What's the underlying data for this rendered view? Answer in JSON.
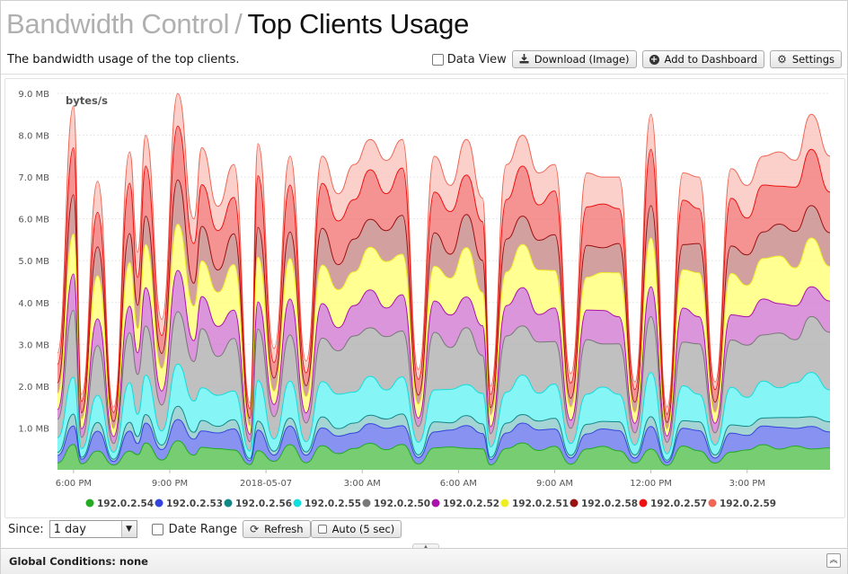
{
  "header": {
    "breadcrumb_parent": "Bandwidth Control",
    "separator": "/",
    "title": "Top Clients Usage",
    "description": "The bandwidth usage of the top clients."
  },
  "toolbar": {
    "data_view_label": "Data View",
    "download_label": "Download (Image)",
    "add_dashboard_label": "Add to Dashboard",
    "settings_label": "Settings"
  },
  "controls": {
    "since_label": "Since:",
    "since_value": "1 day",
    "date_range_label": "Date Range",
    "refresh_label": "Refresh",
    "auto_label": "Auto (5 sec)"
  },
  "footer": {
    "global_conditions": "Global Conditions: none"
  },
  "icons": {
    "download": "download-icon",
    "add": "plus-circle-icon",
    "settings": "gear-icon",
    "refresh": "refresh-icon",
    "collapse": "chevron-double-up-icon"
  },
  "chart_data": {
    "type": "area",
    "stacked": true,
    "ylabel": "bytes/s",
    "ylim": [
      0,
      9000000
    ],
    "yticks": [
      {
        "value": 1000000,
        "label": "1.0 MB"
      },
      {
        "value": 2000000,
        "label": "2.0 MB"
      },
      {
        "value": 3000000,
        "label": "3.0 MB"
      },
      {
        "value": 4000000,
        "label": "4.0 MB"
      },
      {
        "value": 5000000,
        "label": "5.0 MB"
      },
      {
        "value": 6000000,
        "label": "6.0 MB"
      },
      {
        "value": 7000000,
        "label": "7.0 MB"
      },
      {
        "value": 8000000,
        "label": "8.0 MB"
      },
      {
        "value": 9000000,
        "label": "9.0 MB"
      }
    ],
    "xlim": [
      "2018-05-06 17:30",
      "2018-05-07 17:35"
    ],
    "xticks": [
      {
        "value": "2018-05-06 18:00",
        "label": "6:00 PM"
      },
      {
        "value": "2018-05-06 21:00",
        "label": "9:00 PM"
      },
      {
        "value": "2018-05-07 00:00",
        "label": "2018-05-07"
      },
      {
        "value": "2018-05-07 03:00",
        "label": "3:00 AM"
      },
      {
        "value": "2018-05-07 06:00",
        "label": "6:00 AM"
      },
      {
        "value": "2018-05-07 09:00",
        "label": "9:00 AM"
      },
      {
        "value": "2018-05-07 12:00",
        "label": "12:00 PM"
      },
      {
        "value": "2018-05-07 15:00",
        "label": "3:00 PM"
      }
    ],
    "grid": true,
    "legend_position": "bottom",
    "stack_totals": [
      {
        "time": "2018-05-06 17:30",
        "value": 2800000
      },
      {
        "time": "2018-05-06 18:00",
        "value": 8700000
      },
      {
        "time": "2018-05-06 18:15",
        "value": 1800000
      },
      {
        "time": "2018-05-06 18:45",
        "value": 6900000
      },
      {
        "time": "2018-05-06 19:15",
        "value": 1500000
      },
      {
        "time": "2018-05-06 19:45",
        "value": 7600000
      },
      {
        "time": "2018-05-06 20:00",
        "value": 5200000
      },
      {
        "time": "2018-05-06 20:15",
        "value": 8000000
      },
      {
        "time": "2018-05-06 20:45",
        "value": 3600000
      },
      {
        "time": "2018-05-06 21:15",
        "value": 9000000
      },
      {
        "time": "2018-05-06 21:45",
        "value": 6000000
      },
      {
        "time": "2018-05-06 22:00",
        "value": 7700000
      },
      {
        "time": "2018-05-06 22:30",
        "value": 6300000
      },
      {
        "time": "2018-05-06 23:00",
        "value": 7300000
      },
      {
        "time": "2018-05-06 23:30",
        "value": 1600000
      },
      {
        "time": "2018-05-06 23:45",
        "value": 7800000
      },
      {
        "time": "2018-05-07 00:15",
        "value": 2900000
      },
      {
        "time": "2018-05-07 00:45",
        "value": 7500000
      },
      {
        "time": "2018-05-07 01:15",
        "value": 2600000
      },
      {
        "time": "2018-05-07 01:45",
        "value": 7500000
      },
      {
        "time": "2018-05-07 02:15",
        "value": 6600000
      },
      {
        "time": "2018-05-07 02:45",
        "value": 7300000
      },
      {
        "time": "2018-05-07 03:15",
        "value": 7900000
      },
      {
        "time": "2018-05-07 03:45",
        "value": 7400000
      },
      {
        "time": "2018-05-07 04:15",
        "value": 7900000
      },
      {
        "time": "2018-05-07 04:45",
        "value": 2400000
      },
      {
        "time": "2018-05-07 05:15",
        "value": 7500000
      },
      {
        "time": "2018-05-07 05:45",
        "value": 6800000
      },
      {
        "time": "2018-05-07 06:15",
        "value": 7900000
      },
      {
        "time": "2018-05-07 06:45",
        "value": 6500000
      },
      {
        "time": "2018-05-07 07:00",
        "value": 2000000
      },
      {
        "time": "2018-05-07 07:30",
        "value": 7300000
      },
      {
        "time": "2018-05-07 08:00",
        "value": 8000000
      },
      {
        "time": "2018-05-07 08:30",
        "value": 7100000
      },
      {
        "time": "2018-05-07 09:00",
        "value": 7300000
      },
      {
        "time": "2018-05-07 09:30",
        "value": 2300000
      },
      {
        "time": "2018-05-07 10:00",
        "value": 7100000
      },
      {
        "time": "2018-05-07 10:30",
        "value": 7000000
      },
      {
        "time": "2018-05-07 11:00",
        "value": 7000000
      },
      {
        "time": "2018-05-07 11:30",
        "value": 2100000
      },
      {
        "time": "2018-05-07 12:00",
        "value": 8500000
      },
      {
        "time": "2018-05-07 12:30",
        "value": 1500000
      },
      {
        "time": "2018-05-07 13:00",
        "value": 7100000
      },
      {
        "time": "2018-05-07 13:30",
        "value": 7000000
      },
      {
        "time": "2018-05-07 14:00",
        "value": 2100000
      },
      {
        "time": "2018-05-07 14:30",
        "value": 7200000
      },
      {
        "time": "2018-05-07 15:00",
        "value": 6800000
      },
      {
        "time": "2018-05-07 15:30",
        "value": 7500000
      },
      {
        "time": "2018-05-07 16:00",
        "value": 7600000
      },
      {
        "time": "2018-05-07 16:30",
        "value": 7400000
      },
      {
        "time": "2018-05-07 17:00",
        "value": 8500000
      },
      {
        "time": "2018-05-07 17:35",
        "value": 7500000
      }
    ],
    "series": [
      {
        "name": "192.0.2.54",
        "color": "#22aa22",
        "fill": "#55c24f",
        "share": 0.07
      },
      {
        "name": "192.0.2.53",
        "color": "#3344dd",
        "fill": "#6a78ee",
        "share": 0.06
      },
      {
        "name": "192.0.2.56",
        "color": "#118888",
        "fill": "#8fc9c9",
        "share": 0.03
      },
      {
        "name": "192.0.2.55",
        "color": "#11dddd",
        "fill": "#66f2f2",
        "share": 0.11
      },
      {
        "name": "192.0.2.50",
        "color": "#777777",
        "fill": "#b0b0b0",
        "share": 0.16
      },
      {
        "name": "192.0.2.52",
        "color": "#aa11aa",
        "fill": "#d27ad2",
        "share": 0.1
      },
      {
        "name": "192.0.2.51",
        "color": "#eeee22",
        "fill": "#ffff77",
        "share": 0.13
      },
      {
        "name": "192.0.2.58",
        "color": "#991111",
        "fill": "#c88888",
        "share": 0.1
      },
      {
        "name": "192.0.2.57",
        "color": "#ee1111",
        "fill": "#f37777",
        "share": 0.14
      },
      {
        "name": "192.0.2.59",
        "color": "#ee6655",
        "fill": "#fbc4bd",
        "share": 0.1
      }
    ]
  }
}
